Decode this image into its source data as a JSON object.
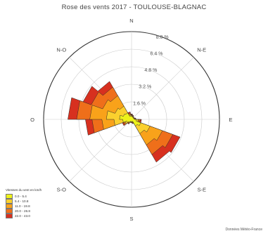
{
  "chart_data": {
    "type": "polar-area",
    "title": "Rose des vents 2017 - TOULOUSE-BLAGNAC",
    "directions": [
      "N",
      "N-E",
      "E",
      "S-E",
      "S",
      "S-O",
      "O",
      "N-O"
    ],
    "radial_unit": "%",
    "radial_max": 8.0,
    "radial_ticks": [
      {
        "value": 1.6,
        "label": "1.6 %"
      },
      {
        "value": 3.2,
        "label": "3.2 %"
      },
      {
        "value": 4.8,
        "label": "4.8 %"
      },
      {
        "value": 6.4,
        "label": "6.4 %"
      },
      {
        "value": 8.0,
        "label": "8.0 %"
      }
    ],
    "sector_bearings_deg": [
      0,
      20,
      40,
      60,
      80,
      100,
      120,
      140,
      160,
      180,
      200,
      220,
      240,
      260,
      280,
      300,
      320,
      340
    ],
    "legend_title": "Vitesses du vent en km/h",
    "series": [
      {
        "name": "22.0 - 43.0",
        "color": "#d7301f",
        "values": [
          0.5,
          0.4,
          0.3,
          0.3,
          0.4,
          0.9,
          4.7,
          4.5,
          0.4,
          0.3,
          0.3,
          0.5,
          0.9,
          4.2,
          5.8,
          4.7,
          4.0,
          0.7
        ]
      },
      {
        "name": "20.0 - 26.8",
        "color": "#ef6f1a",
        "values": [
          0.45,
          0.35,
          0.3,
          0.3,
          0.35,
          0.8,
          4.0,
          3.7,
          0.35,
          0.3,
          0.3,
          0.45,
          0.8,
          3.6,
          5.0,
          3.9,
          3.4,
          0.6
        ]
      },
      {
        "name": "11.0 - 19.8",
        "color": "#f9a21a",
        "values": [
          0.4,
          0.3,
          0.25,
          0.25,
          0.3,
          0.7,
          3.0,
          2.7,
          0.3,
          0.25,
          0.25,
          0.4,
          0.7,
          2.7,
          3.8,
          2.8,
          2.5,
          0.5
        ]
      },
      {
        "name": "5.4 - 10.8",
        "color": "#fbd02e",
        "values": [
          0.35,
          0.3,
          0.25,
          0.25,
          0.3,
          0.6,
          1.8,
          1.5,
          0.25,
          0.25,
          0.25,
          0.35,
          0.6,
          1.6,
          2.3,
          1.6,
          1.4,
          0.4
        ]
      },
      {
        "name": "0.0 - 5.4",
        "color": "#eef21a",
        "values": [
          0.3,
          0.25,
          0.2,
          0.2,
          0.25,
          0.45,
          0.9,
          0.7,
          0.2,
          0.2,
          0.2,
          0.3,
          0.45,
          0.8,
          1.1,
          0.8,
          0.7,
          0.3
        ]
      }
    ],
    "credit": "Données Météo-France"
  }
}
